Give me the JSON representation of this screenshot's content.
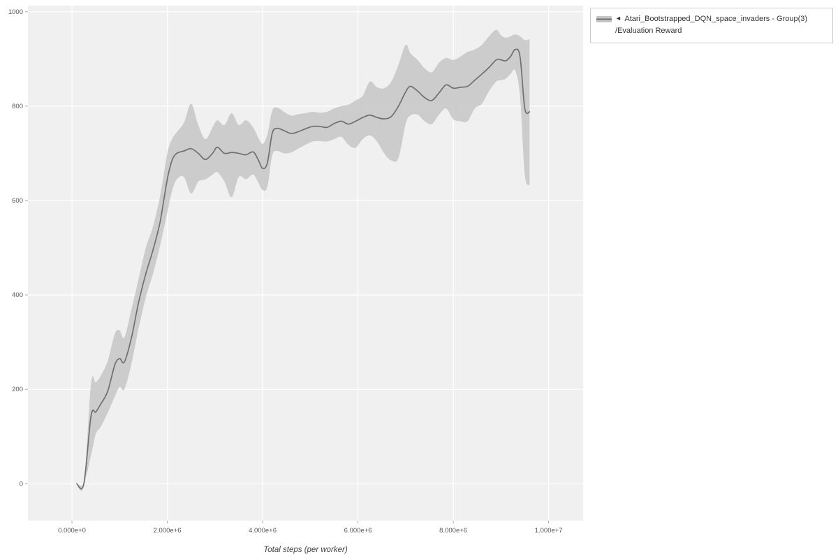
{
  "legend": {
    "marker": "◄",
    "series_label": "Atari_Bootstrapped_DQN_space_invaders - Group(3)",
    "metric_label": "/Evaluation Reward"
  },
  "chart_data": {
    "type": "line",
    "title": "",
    "xlabel": "Total steps (per worker)",
    "ylabel": "",
    "grid": true,
    "legend_position": "outside-top-right",
    "xlim": [
      -923000,
      10723000
    ],
    "ylim": [
      -78,
      1013
    ],
    "x_ticks": [
      {
        "value": 0,
        "label": "0.000e+0"
      },
      {
        "value": 2000000,
        "label": "2.000e+6"
      },
      {
        "value": 4000000,
        "label": "4.000e+6"
      },
      {
        "value": 6000000,
        "label": "6.000e+6"
      },
      {
        "value": 8000000,
        "label": "8.000e+6"
      },
      {
        "value": 10000000,
        "label": "1.000e+7"
      }
    ],
    "y_ticks": [
      {
        "value": 0,
        "label": "0"
      },
      {
        "value": 200,
        "label": "200"
      },
      {
        "value": 400,
        "label": "400"
      },
      {
        "value": 600,
        "label": "600"
      },
      {
        "value": 800,
        "label": "800"
      },
      {
        "value": 1000,
        "label": "1000"
      }
    ],
    "colors": {
      "line": "#6f6f6f",
      "band": "#c6c6c6",
      "plot_bg": "#f0f0f0",
      "grid": "#ffffff",
      "tick": "#aaaaaa",
      "tick_text": "#555555",
      "axis_label": "#444444",
      "legend_border": "#cccccc"
    },
    "series": [
      {
        "name": "Atari_Bootstrapped_DQN_space_invaders - Group(3)/Evaluation Reward",
        "x": [
          100000,
          250000,
          400000,
          500000,
          600000,
          750000,
          900000,
          1000000,
          1100000,
          1250000,
          1400000,
          1550000,
          1700000,
          1850000,
          2000000,
          2100000,
          2200000,
          2350000,
          2500000,
          2650000,
          2800000,
          2950000,
          3050000,
          3200000,
          3350000,
          3500000,
          3650000,
          3800000,
          3900000,
          4000000,
          4100000,
          4200000,
          4300000,
          4450000,
          4600000,
          4750000,
          4900000,
          5050000,
          5200000,
          5350000,
          5500000,
          5650000,
          5800000,
          5950000,
          6100000,
          6250000,
          6400000,
          6550000,
          6700000,
          6850000,
          7000000,
          7100000,
          7250000,
          7400000,
          7550000,
          7700000,
          7850000,
          8000000,
          8150000,
          8300000,
          8450000,
          8600000,
          8750000,
          8900000,
          9000000,
          9100000,
          9200000,
          9300000,
          9400000,
          9500000,
          9600000
        ],
        "mean": [
          0,
          0,
          143,
          152,
          168,
          196,
          252,
          265,
          258,
          310,
          385,
          445,
          495,
          555,
          645,
          685,
          700,
          705,
          710,
          700,
          687,
          700,
          713,
          700,
          702,
          700,
          697,
          703,
          688,
          668,
          680,
          742,
          753,
          748,
          742,
          746,
          752,
          757,
          757,
          755,
          763,
          768,
          762,
          768,
          776,
          781,
          776,
          773,
          778,
          800,
          830,
          842,
          832,
          818,
          812,
          828,
          845,
          838,
          840,
          842,
          855,
          868,
          882,
          898,
          898,
          896,
          905,
          920,
          905,
          795,
          788
        ],
        "lower": [
          0,
          0,
          60,
          105,
          120,
          150,
          185,
          205,
          200,
          255,
          330,
          395,
          445,
          505,
          575,
          620,
          645,
          650,
          615,
          640,
          645,
          655,
          660,
          640,
          607,
          650,
          645,
          655,
          640,
          622,
          630,
          695,
          705,
          700,
          702,
          710,
          718,
          725,
          726,
          725,
          730,
          735,
          718,
          712,
          730,
          738,
          725,
          700,
          685,
          690,
          762,
          780,
          782,
          768,
          762,
          782,
          795,
          772,
          768,
          768,
          795,
          805,
          832,
          852,
          855,
          858,
          868,
          875,
          820,
          655,
          632
        ],
        "upper": [
          0,
          0,
          212,
          215,
          228,
          260,
          318,
          325,
          310,
          370,
          435,
          500,
          545,
          610,
          700,
          730,
          745,
          765,
          805,
          760,
          730,
          755,
          770,
          760,
          785,
          760,
          770,
          755,
          735,
          720,
          740,
          790,
          797,
          788,
          780,
          783,
          785,
          788,
          786,
          788,
          795,
          800,
          803,
          812,
          822,
          852,
          840,
          838,
          852,
          888,
          930,
          912,
          898,
          880,
          872,
          892,
          902,
          898,
          905,
          915,
          920,
          930,
          948,
          962,
          950,
          945,
          948,
          952,
          948,
          940,
          942
        ]
      }
    ]
  }
}
